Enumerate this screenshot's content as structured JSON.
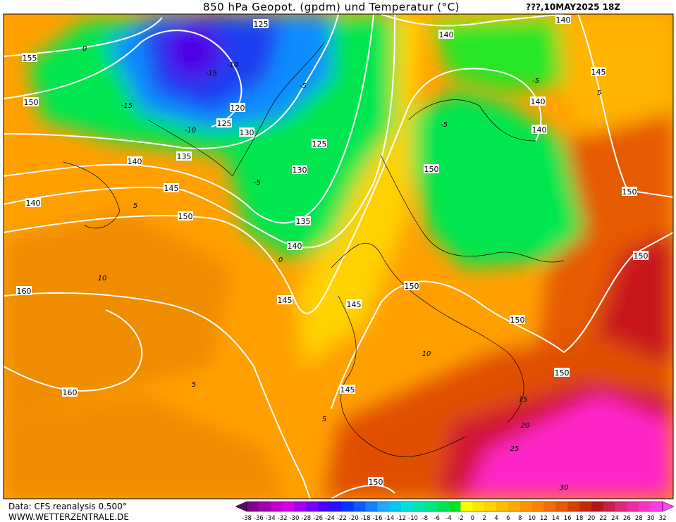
{
  "header": {
    "title": "850 hPa Geopot. (gpdm) und Temperatur (°C)",
    "date": "???,10MAY2025 18Z"
  },
  "footer": {
    "source": "Data: CFS reanalysis 0.500°",
    "site": "WWW.WETTERZENTRALE.DE"
  },
  "colorbar": {
    "labels": [
      "-38",
      "-36",
      "-34",
      "-32",
      "-30",
      "-28",
      "-26",
      "-24",
      "-22",
      "-20",
      "-18",
      "-16",
      "-14",
      "-12",
      "-10",
      "-8",
      "-6",
      "-4",
      "-2",
      "0",
      "2",
      "4",
      "6",
      "8",
      "10",
      "12",
      "14",
      "16",
      "18",
      "20",
      "22",
      "24",
      "26",
      "28",
      "30",
      "32"
    ],
    "colors": [
      "#64006e",
      "#82008c",
      "#a000aa",
      "#be00c8",
      "#d200e6",
      "#a000f0",
      "#7800f0",
      "#4b00f5",
      "#2814f5",
      "#0a32ff",
      "#0a5aff",
      "#1482ff",
      "#1eaaff",
      "#00c8f0",
      "#00e1dc",
      "#00e6aa",
      "#00e682",
      "#00e650",
      "#00e61e",
      "#ffff00",
      "#ffe600",
      "#ffd200",
      "#ffbe00",
      "#ffaa00",
      "#ff9600",
      "#ff8200",
      "#f56e00",
      "#e65a00",
      "#d74100",
      "#c8280a",
      "#b4141e",
      "#c81e46",
      "#dc2878",
      "#f02da0",
      "#ff32c8",
      "#ff3ce6",
      "#ff46f5"
    ]
  },
  "geopotential_labels": [
    "125",
    "155",
    "150",
    "120",
    "125",
    "130",
    "125",
    "135",
    "140",
    "130",
    "145",
    "140",
    "150",
    "135",
    "140",
    "160",
    "145",
    "145",
    "150",
    "150",
    "150",
    "140",
    "145",
    "140",
    "140",
    "150",
    "150",
    "150",
    "160",
    "145",
    "150",
    "140"
  ],
  "temperature_labels": [
    "-15",
    "-15",
    "-10",
    "-5",
    "-5",
    "0",
    "0",
    "5",
    "5",
    "10",
    "10",
    "15",
    "20",
    "25",
    "30",
    "-5",
    "5",
    "-5",
    "5",
    "-10"
  ]
}
